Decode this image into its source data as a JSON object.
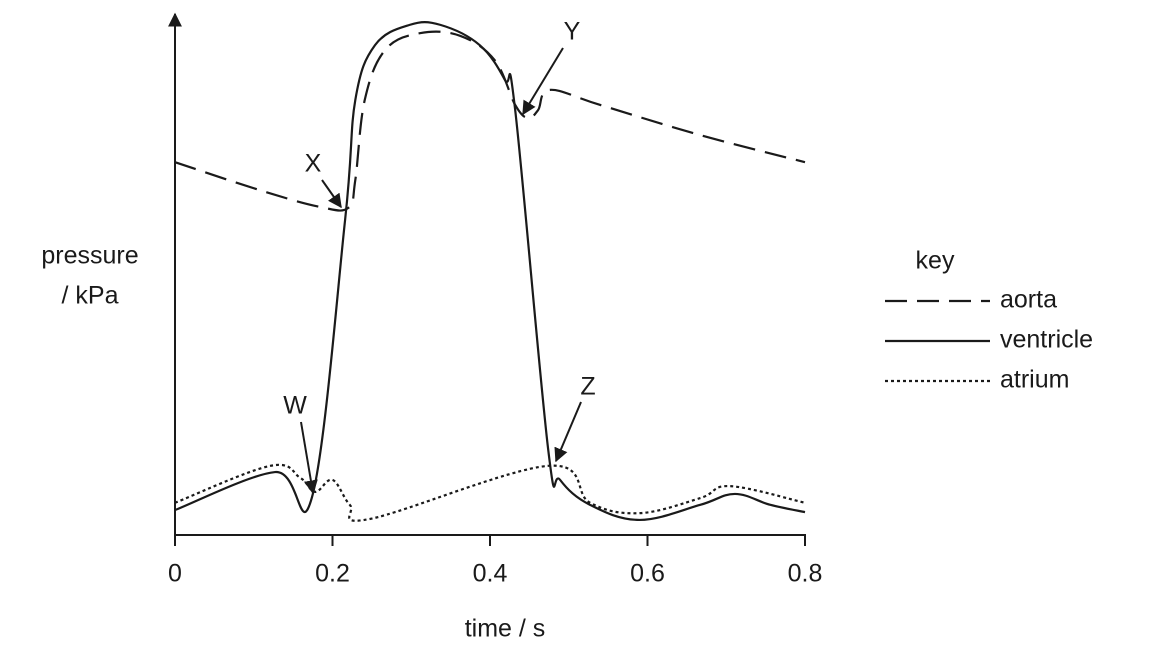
{
  "chart_data": {
    "type": "line",
    "xlabel": "time / s",
    "ylabel": [
      "pressure",
      "/ kPa"
    ],
    "xlim": [
      0,
      0.8
    ],
    "xticks": [
      0,
      0.2,
      0.4,
      0.6,
      0.8
    ],
    "ylim": [
      0,
      100
    ],
    "legend_title": "key",
    "legend": "right",
    "series": [
      {
        "name": "aorta",
        "color": "#1a1a1a",
        "style": "dashed",
        "x": [
          0,
          0.108,
          0.184,
          0.22,
          0.229,
          0.241,
          0.267,
          0.311,
          0.362,
          0.406,
          0.432,
          0.448,
          0.461,
          0.476,
          0.54,
          0.667,
          0.8
        ],
        "values": [
          71.7,
          66.3,
          63.1,
          62.9,
          68.3,
          83.7,
          93.3,
          96.5,
          96,
          91.3,
          82.7,
          80.2,
          81.7,
          85.6,
          82.7,
          76.9,
          71.7
        ]
      },
      {
        "name": "ventricle",
        "color": "#1a1a1a",
        "style": "solid",
        "x": [
          0,
          0.127,
          0.174,
          0.216,
          0.229,
          0.254,
          0.298,
          0.337,
          0.387,
          0.419,
          0.432,
          0.474,
          0.489,
          0.527,
          0.59,
          0.667,
          0.711,
          0.756,
          0.8
        ],
        "values": [
          4.8,
          12.1,
          7.3,
          60.6,
          83.7,
          94.2,
          98.1,
          98.1,
          94.2,
          87.5,
          81.7,
          16.3,
          10.6,
          5.8,
          2.9,
          5.8,
          7.9,
          5.8,
          4.4
        ]
      },
      {
        "name": "atrium",
        "color": "#1a1a1a",
        "style": "dotted",
        "x": [
          0,
          0.121,
          0.159,
          0.178,
          0.2,
          0.222,
          0.248,
          0.474,
          0.527,
          0.59,
          0.667,
          0.705,
          0.8
        ],
        "values": [
          6.2,
          13.3,
          11,
          8.3,
          10.6,
          5.8,
          3.1,
          13.3,
          6.2,
          4.2,
          7.1,
          9.4,
          6.2
        ]
      }
    ],
    "annotations": [
      "W",
      "X",
      "Y",
      "Z"
    ]
  }
}
